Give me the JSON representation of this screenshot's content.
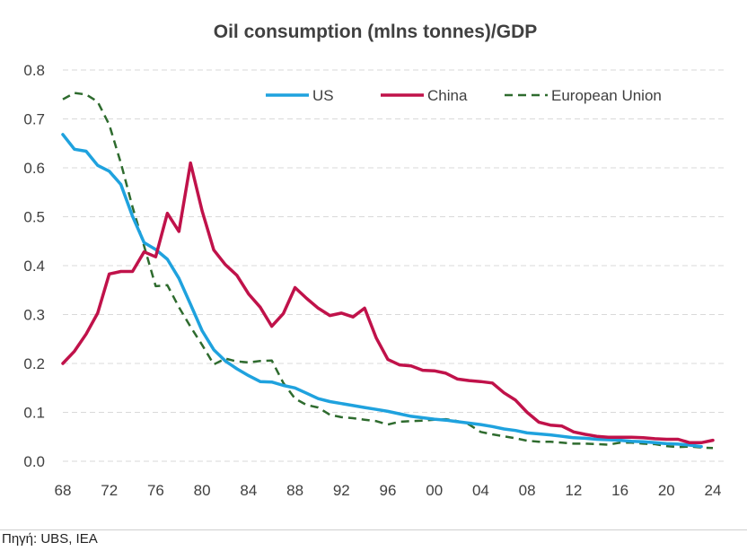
{
  "chart_data": {
    "type": "line",
    "title": "Oil consumption (mlns tonnes)/GDP",
    "xlabel": "",
    "ylabel": "",
    "xlim": [
      68,
      24
    ],
    "ylim": [
      0,
      0.8
    ],
    "x_tick_labels": [
      "68",
      "72",
      "76",
      "80",
      "84",
      "88",
      "92",
      "96",
      "00",
      "04",
      "08",
      "12",
      "16",
      "20",
      "24"
    ],
    "y_tick_labels": [
      "0.0",
      "0.1",
      "0.2",
      "0.3",
      "0.4",
      "0.5",
      "0.6",
      "0.7",
      "0.8"
    ],
    "grid": "horizontal dashed",
    "legend_position": "top",
    "series": [
      {
        "name": "US",
        "color": "#1fa2de",
        "style": "solid",
        "points": [
          [
            "1968",
            0.668
          ],
          [
            "1969",
            0.638
          ],
          [
            "1970",
            0.634
          ],
          [
            "1971",
            0.605
          ],
          [
            "1972",
            0.593
          ],
          [
            "1973",
            0.566
          ],
          [
            "1974",
            0.501
          ],
          [
            "1975",
            0.447
          ],
          [
            "1976",
            0.433
          ],
          [
            "1977",
            0.413
          ],
          [
            "1978",
            0.374
          ],
          [
            "1979",
            0.321
          ],
          [
            "1980",
            0.267
          ],
          [
            "1981",
            0.228
          ],
          [
            "1982",
            0.205
          ],
          [
            "1983",
            0.189
          ],
          [
            "1984",
            0.175
          ],
          [
            "1985",
            0.163
          ],
          [
            "1986",
            0.162
          ],
          [
            "1987",
            0.155
          ],
          [
            "1988",
            0.15
          ],
          [
            "1989",
            0.139
          ],
          [
            "1990",
            0.128
          ],
          [
            "1991",
            0.122
          ],
          [
            "1992",
            0.118
          ],
          [
            "1993",
            0.114
          ],
          [
            "1994",
            0.11
          ],
          [
            "1995",
            0.106
          ],
          [
            "1996",
            0.102
          ],
          [
            "1997",
            0.097
          ],
          [
            "1998",
            0.092
          ],
          [
            "1999",
            0.089
          ],
          [
            "2000",
            0.086
          ],
          [
            "2001",
            0.084
          ],
          [
            "2002",
            0.081
          ],
          [
            "2003",
            0.078
          ],
          [
            "2004",
            0.075
          ],
          [
            "2005",
            0.071
          ],
          [
            "2006",
            0.066
          ],
          [
            "2007",
            0.063
          ],
          [
            "2008",
            0.058
          ],
          [
            "2009",
            0.056
          ],
          [
            "2010",
            0.054
          ],
          [
            "2011",
            0.051
          ],
          [
            "2012",
            0.048
          ],
          [
            "2013",
            0.047
          ],
          [
            "2014",
            0.045
          ],
          [
            "2015",
            0.044
          ],
          [
            "2016",
            0.043
          ],
          [
            "2017",
            0.041
          ],
          [
            "2018",
            0.04
          ],
          [
            "2019",
            0.038
          ],
          [
            "2020",
            0.036
          ],
          [
            "2021",
            0.035
          ],
          [
            "2022",
            0.033
          ],
          [
            "2023",
            0.03
          ]
        ]
      },
      {
        "name": "China",
        "color": "#c0124a",
        "style": "solid",
        "points": [
          [
            "1968",
            0.2
          ],
          [
            "1969",
            0.225
          ],
          [
            "1970",
            0.26
          ],
          [
            "1971",
            0.303
          ],
          [
            "1972",
            0.383
          ],
          [
            "1973",
            0.388
          ],
          [
            "1974",
            0.388
          ],
          [
            "1975",
            0.428
          ],
          [
            "1976",
            0.418
          ],
          [
            "1977",
            0.507
          ],
          [
            "1978",
            0.47
          ],
          [
            "1979",
            0.61
          ],
          [
            "1980",
            0.512
          ],
          [
            "1981",
            0.432
          ],
          [
            "1982",
            0.402
          ],
          [
            "1983",
            0.38
          ],
          [
            "1984",
            0.342
          ],
          [
            "1985",
            0.315
          ],
          [
            "1986",
            0.276
          ],
          [
            "1987",
            0.302
          ],
          [
            "1988",
            0.355
          ],
          [
            "1989",
            0.333
          ],
          [
            "1990",
            0.313
          ],
          [
            "1991",
            0.298
          ],
          [
            "1992",
            0.303
          ],
          [
            "1993",
            0.295
          ],
          [
            "1994",
            0.313
          ],
          [
            "1995",
            0.252
          ],
          [
            "1996",
            0.208
          ],
          [
            "1997",
            0.197
          ],
          [
            "1998",
            0.195
          ],
          [
            "1999",
            0.186
          ],
          [
            "2000",
            0.185
          ],
          [
            "2001",
            0.18
          ],
          [
            "2002",
            0.168
          ],
          [
            "2003",
            0.165
          ],
          [
            "2004",
            0.163
          ],
          [
            "2005",
            0.16
          ],
          [
            "2006",
            0.14
          ],
          [
            "2007",
            0.125
          ],
          [
            "2008",
            0.1
          ],
          [
            "2009",
            0.08
          ],
          [
            "2010",
            0.074
          ],
          [
            "2011",
            0.072
          ],
          [
            "2012",
            0.06
          ],
          [
            "2013",
            0.055
          ],
          [
            "2014",
            0.051
          ],
          [
            "2015",
            0.049
          ],
          [
            "2016",
            0.049
          ],
          [
            "2017",
            0.049
          ],
          [
            "2018",
            0.048
          ],
          [
            "2019",
            0.046
          ],
          [
            "2020",
            0.045
          ],
          [
            "2021",
            0.045
          ],
          [
            "2022",
            0.038
          ],
          [
            "2023",
            0.038
          ],
          [
            "2024",
            0.043
          ]
        ]
      },
      {
        "name": "European Union",
        "color": "#2e6b2e",
        "style": "dashed",
        "points": [
          [
            "1968",
            0.74
          ],
          [
            "1969",
            0.753
          ],
          [
            "1970",
            0.75
          ],
          [
            "1971",
            0.735
          ],
          [
            "1972",
            0.688
          ],
          [
            "1973",
            0.61
          ],
          [
            "1974",
            0.52
          ],
          [
            "1975",
            0.44
          ],
          [
            "1976",
            0.358
          ],
          [
            "1977",
            0.36
          ],
          [
            "1978",
            0.315
          ],
          [
            "1979",
            0.275
          ],
          [
            "1980",
            0.238
          ],
          [
            "1981",
            0.198
          ],
          [
            "1982",
            0.21
          ],
          [
            "1983",
            0.204
          ],
          [
            "1984",
            0.202
          ],
          [
            "1985",
            0.205
          ],
          [
            "1986",
            0.206
          ],
          [
            "1987",
            0.16
          ],
          [
            "1988",
            0.128
          ],
          [
            "1989",
            0.115
          ],
          [
            "1990",
            0.11
          ],
          [
            "1991",
            0.095
          ],
          [
            "1992",
            0.09
          ],
          [
            "1993",
            0.088
          ],
          [
            "1994",
            0.085
          ],
          [
            "1995",
            0.082
          ],
          [
            "1996",
            0.075
          ],
          [
            "1997",
            0.081
          ],
          [
            "1998",
            0.082
          ],
          [
            "1999",
            0.083
          ],
          [
            "2000",
            0.085
          ],
          [
            "2001",
            0.086
          ],
          [
            "2002",
            0.082
          ],
          [
            "2003",
            0.075
          ],
          [
            "2004",
            0.06
          ],
          [
            "2005",
            0.055
          ],
          [
            "2006",
            0.051
          ],
          [
            "2007",
            0.047
          ],
          [
            "2008",
            0.042
          ],
          [
            "2009",
            0.04
          ],
          [
            "2010",
            0.04
          ],
          [
            "2011",
            0.038
          ],
          [
            "2012",
            0.036
          ],
          [
            "2013",
            0.036
          ],
          [
            "2014",
            0.035
          ],
          [
            "2015",
            0.034
          ],
          [
            "2016",
            0.038
          ],
          [
            "2017",
            0.038
          ],
          [
            "2018",
            0.036
          ],
          [
            "2019",
            0.035
          ],
          [
            "2020",
            0.031
          ],
          [
            "2021",
            0.029
          ],
          [
            "2022",
            0.03
          ],
          [
            "2023",
            0.028
          ],
          [
            "2024",
            0.027
          ]
        ]
      }
    ]
  },
  "source": "Πηγή: UBS, IEA"
}
